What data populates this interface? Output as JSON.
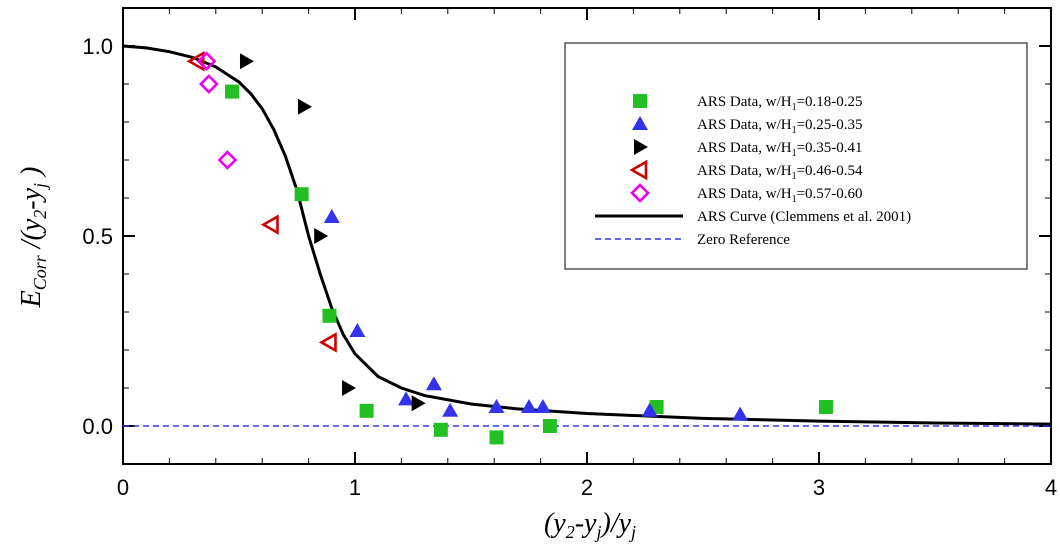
{
  "chart_data": {
    "type": "scatter",
    "xlim": [
      0,
      4
    ],
    "ylim": [
      -0.1,
      1.1
    ],
    "x_ticks": [
      "0",
      "1",
      "2",
      "3",
      "4"
    ],
    "y_ticks": [
      "0.0",
      "0.5",
      "1.0"
    ],
    "xlabel": {
      "p1": "(y",
      "s1": "2",
      "p2": "-y",
      "s2": "j",
      "p3": ")/y",
      "s3": "j"
    },
    "ylabel": {
      "p1": "E",
      "s1": "Corr",
      "p2": " /(y",
      "s2": "2",
      "p3": "-y",
      "s3": "j",
      "p4": " )"
    },
    "legend_position": "top-right",
    "series": [
      {
        "legend": {
          "before": "ARS Data, w/H",
          "sub": "1",
          "after": "=0.18-0.25"
        },
        "marker": "square",
        "color": "#22c022",
        "points": [
          [
            0.47,
            0.88
          ],
          [
            0.77,
            0.61
          ],
          [
            0.89,
            0.29
          ],
          [
            1.05,
            0.04
          ],
          [
            1.37,
            -0.01
          ],
          [
            1.61,
            -0.03
          ],
          [
            1.84,
            0.0
          ],
          [
            2.3,
            0.05
          ],
          [
            3.03,
            0.05
          ]
        ]
      },
      {
        "legend": {
          "before": "ARS Data, w/H",
          "sub": "1",
          "after": "=0.25-0.35"
        },
        "marker": "triangle-up",
        "color": "#3333ee",
        "points": [
          [
            0.9,
            0.55
          ],
          [
            1.01,
            0.25
          ],
          [
            1.22,
            0.07
          ],
          [
            1.34,
            0.11
          ],
          [
            1.41,
            0.04
          ],
          [
            1.61,
            0.05
          ],
          [
            1.75,
            0.05
          ],
          [
            1.81,
            0.05
          ],
          [
            2.27,
            0.04
          ],
          [
            2.66,
            0.03
          ]
        ]
      },
      {
        "legend": {
          "before": "ARS Data, w/H",
          "sub": "1",
          "after": "=0.35-0.41"
        },
        "marker": "triangle-right",
        "color": "#000000",
        "points": [
          [
            0.53,
            0.96
          ],
          [
            0.78,
            0.84
          ],
          [
            0.85,
            0.5
          ],
          [
            0.97,
            0.1
          ],
          [
            1.27,
            0.06
          ]
        ]
      },
      {
        "legend": {
          "before": "ARS Data, w/H",
          "sub": "1",
          "after": "=0.46-0.54"
        },
        "marker": "triangle-left-open",
        "color": "#cc0000",
        "points": [
          [
            0.32,
            0.96
          ],
          [
            0.64,
            0.53
          ],
          [
            0.89,
            0.22
          ]
        ]
      },
      {
        "legend": {
          "before": "ARS Data, w/H",
          "sub": "1",
          "after": "=0.57-0.60"
        },
        "marker": "diamond-open",
        "color": "#ee00ee",
        "points": [
          [
            0.36,
            0.96
          ],
          [
            0.37,
            0.9
          ],
          [
            0.45,
            0.7
          ]
        ]
      },
      {
        "legend": {
          "before": "ARS Curve (Clemmens et al. 2001)",
          "sub": "",
          "after": ""
        },
        "marker": "line",
        "color": "#000000",
        "points": [
          [
            0.0,
            1.0
          ],
          [
            0.1,
            0.995
          ],
          [
            0.2,
            0.985
          ],
          [
            0.3,
            0.97
          ],
          [
            0.4,
            0.945
          ],
          [
            0.5,
            0.905
          ],
          [
            0.55,
            0.875
          ],
          [
            0.6,
            0.835
          ],
          [
            0.65,
            0.78
          ],
          [
            0.7,
            0.71
          ],
          [
            0.75,
            0.62
          ],
          [
            0.8,
            0.5
          ],
          [
            0.85,
            0.4
          ],
          [
            0.9,
            0.31
          ],
          [
            0.95,
            0.24
          ],
          [
            1.0,
            0.19
          ],
          [
            1.1,
            0.13
          ],
          [
            1.2,
            0.1
          ],
          [
            1.3,
            0.08
          ],
          [
            1.5,
            0.058
          ],
          [
            1.7,
            0.045
          ],
          [
            2.0,
            0.033
          ],
          [
            2.5,
            0.02
          ],
          [
            3.0,
            0.013
          ],
          [
            3.5,
            0.008
          ],
          [
            4.0,
            0.005
          ]
        ]
      },
      {
        "legend": {
          "before": "Zero Reference",
          "sub": "",
          "after": ""
        },
        "marker": "dashed-line",
        "color": "#3333ee",
        "points": [
          [
            0,
            0
          ],
          [
            4,
            0
          ]
        ]
      }
    ]
  }
}
